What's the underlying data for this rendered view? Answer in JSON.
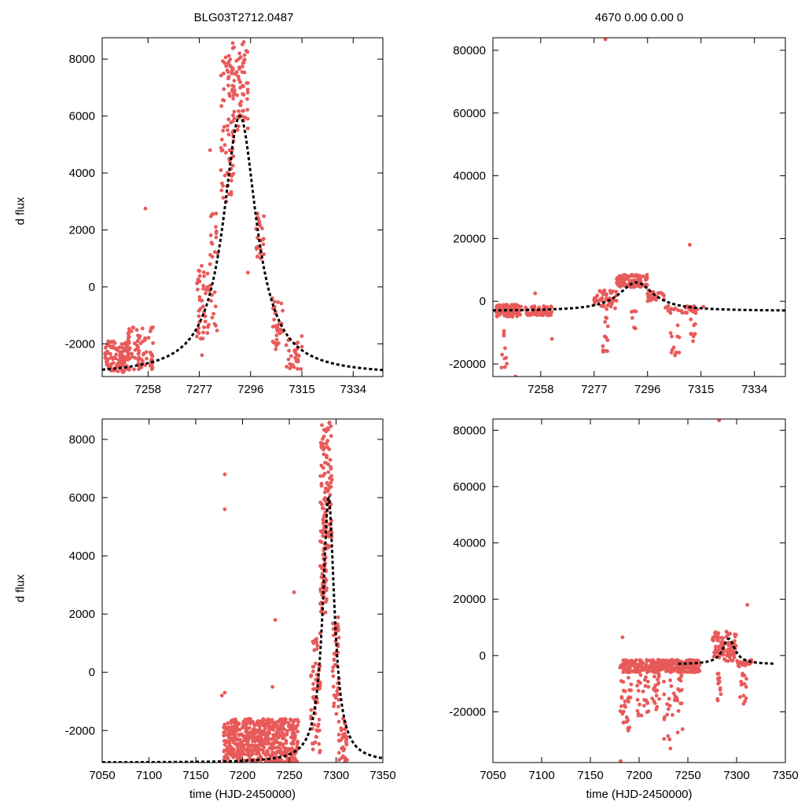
{
  "titles": {
    "left": "BLG03T2712.0487",
    "right": "4670   0.00   0.00   0"
  },
  "ylabel": "d flux",
  "xlabel": "time (HJD-2450000)",
  "colors": {
    "points": "#e85a5a",
    "model": "#000000",
    "axes": "#000000"
  },
  "chart_data": [
    {
      "type": "scatter",
      "panel": "top-left",
      "xlim": [
        7241,
        7345
      ],
      "ylim": [
        -3150,
        8750
      ],
      "xticks": [
        7258,
        7277,
        7296,
        7315,
        7334
      ],
      "yticks": [
        -2000,
        0,
        2000,
        4000,
        6000,
        8000
      ],
      "model": {
        "t0": 7292,
        "amplitude": 9100,
        "baseline": -3100,
        "width": 7.5
      },
      "clusters": [
        {
          "x": [
            7242,
            7251
          ],
          "y": [
            -3000,
            -1900
          ],
          "n": 110
        },
        {
          "x": [
            7250,
            7260
          ],
          "y": [
            -2900,
            -1400
          ],
          "n": 80
        },
        {
          "x": [
            7276,
            7281
          ],
          "y": [
            -2300,
            800
          ],
          "n": 45
        },
        {
          "x": [
            7281,
            7284
          ],
          "y": [
            -2000,
            2600
          ],
          "n": 25
        },
        {
          "x": [
            7285,
            7290
          ],
          "y": [
            3000,
            8300
          ],
          "n": 70
        },
        {
          "x": [
            7289,
            7295
          ],
          "y": [
            5500,
            8600
          ],
          "n": 70
        },
        {
          "x": [
            7298,
            7301
          ],
          "y": [
            900,
            2600
          ],
          "n": 25
        },
        {
          "x": [
            7304,
            7308
          ],
          "y": [
            -2200,
            -500
          ],
          "n": 30
        },
        {
          "x": [
            7309,
            7315
          ],
          "y": [
            -2900,
            -1700
          ],
          "n": 30
        }
      ],
      "outliers": [
        [
          7257,
          2750
        ],
        [
          7281,
          4800
        ],
        [
          7285,
          4100
        ],
        [
          7295,
          500
        ],
        [
          7304,
          -400
        ],
        [
          7278,
          -2400
        ]
      ]
    },
    {
      "type": "scatter",
      "panel": "top-right",
      "xlim": [
        7241,
        7345
      ],
      "ylim": [
        -24000,
        84000
      ],
      "xticks": [
        7258,
        7277,
        7296,
        7315,
        7334
      ],
      "yticks": [
        -20000,
        0,
        20000,
        40000,
        60000,
        80000
      ],
      "model": {
        "t0": 7292,
        "amplitude": 9100,
        "baseline": -3100,
        "width": 7.5
      },
      "clusters": [
        {
          "x": [
            7242,
            7250
          ],
          "y": [
            -5000,
            -1000
          ],
          "n": 110
        },
        {
          "x": [
            7250,
            7262
          ],
          "y": [
            -4500,
            -1500
          ],
          "n": 70
        },
        {
          "x": [
            7277,
            7285
          ],
          "y": [
            -2500,
            3500
          ],
          "n": 50
        },
        {
          "x": [
            7285,
            7296
          ],
          "y": [
            4500,
            8500
          ],
          "n": 110
        },
        {
          "x": [
            7296,
            7302
          ],
          "y": [
            0,
            4000
          ],
          "n": 25
        },
        {
          "x": [
            7302,
            7316
          ],
          "y": [
            -4000,
            -1500
          ],
          "n": 40
        },
        {
          "x": [
            7244,
            7246
          ],
          "y": [
            -22000,
            -8000
          ],
          "n": 10
        },
        {
          "x": [
            7280,
            7282
          ],
          "y": [
            -17000,
            -5000
          ],
          "n": 12
        },
        {
          "x": [
            7290,
            7292
          ],
          "y": [
            -9000,
            -3000
          ],
          "n": 6
        },
        {
          "x": [
            7304,
            7308
          ],
          "y": [
            -18000,
            -7000
          ],
          "n": 12
        },
        {
          "x": [
            7311,
            7313
          ],
          "y": [
            -13000,
            -5000
          ],
          "n": 8
        }
      ],
      "outliers": [
        [
          7281,
          83500
        ],
        [
          7311,
          18000
        ],
        [
          7262,
          -12000
        ],
        [
          7256,
          2500
        ],
        [
          7249,
          -24000
        ]
      ]
    },
    {
      "type": "scatter",
      "panel": "bottom-left",
      "xlim": [
        7050,
        7350
      ],
      "ylim": [
        -3100,
        8700
      ],
      "xticks": [
        7050,
        7100,
        7150,
        7200,
        7250,
        7300,
        7350
      ],
      "yticks": [
        -2000,
        0,
        2000,
        4000,
        6000,
        8000
      ],
      "model": {
        "t0": 7292,
        "amplitude": 9100,
        "baseline": -3100,
        "width": 7.5
      },
      "clusters": [
        {
          "x": [
            7180,
            7260
          ],
          "y": [
            -3100,
            -1600
          ],
          "n": 550
        },
        {
          "x": [
            7273,
            7283
          ],
          "y": [
            -2800,
            1500
          ],
          "n": 60
        },
        {
          "x": [
            7283,
            7290
          ],
          "y": [
            2000,
            8500
          ],
          "n": 110
        },
        {
          "x": [
            7290,
            7296
          ],
          "y": [
            4000,
            8600
          ],
          "n": 50
        },
        {
          "x": [
            7296,
            7303
          ],
          "y": [
            -1500,
            2000
          ],
          "n": 40
        },
        {
          "x": [
            7303,
            7312
          ],
          "y": [
            -3100,
            -1500
          ],
          "n": 35
        }
      ],
      "outliers": [
        [
          7181,
          6800
        ],
        [
          7181,
          5600
        ],
        [
          7181,
          -700
        ],
        [
          7178,
          -800
        ],
        [
          7235,
          1800
        ],
        [
          7255,
          2750
        ],
        [
          7232,
          -500
        ]
      ]
    },
    {
      "type": "scatter",
      "panel": "bottom-right",
      "xlim": [
        7050,
        7350
      ],
      "ylim": [
        -38000,
        84000
      ],
      "xticks": [
        7050,
        7100,
        7150,
        7200,
        7250,
        7300,
        7350
      ],
      "yticks": [
        -20000,
        0,
        20000,
        40000,
        60000,
        80000
      ],
      "model": {
        "t0": 7292,
        "amplitude": 9100,
        "baseline": -3100,
        "width": 7.5,
        "x_start": 7240
      },
      "clusters": [
        {
          "x": [
            7180,
            7262
          ],
          "y": [
            -6000,
            -1500
          ],
          "n": 350
        },
        {
          "x": [
            7180,
            7192
          ],
          "y": [
            -28000,
            -6000
          ],
          "n": 30
        },
        {
          "x": [
            7198,
            7210
          ],
          "y": [
            -22000,
            -6000
          ],
          "n": 25
        },
        {
          "x": [
            7212,
            7222
          ],
          "y": [
            -20000,
            -6000
          ],
          "n": 20
        },
        {
          "x": [
            7225,
            7245
          ],
          "y": [
            -30000,
            -6000
          ],
          "n": 35
        },
        {
          "x": [
            7275,
            7300
          ],
          "y": [
            -2000,
            8500
          ],
          "n": 90
        },
        {
          "x": [
            7280,
            7284
          ],
          "y": [
            -16000,
            -6000
          ],
          "n": 12
        },
        {
          "x": [
            7303,
            7310
          ],
          "y": [
            -18000,
            -6000
          ],
          "n": 14
        },
        {
          "x": [
            7300,
            7316
          ],
          "y": [
            -4000,
            -1500
          ],
          "n": 25
        }
      ],
      "outliers": [
        [
          7282,
          83500
        ],
        [
          7311,
          18000
        ],
        [
          7183,
          6500
        ],
        [
          7181,
          -37500
        ],
        [
          7232,
          -33000
        ]
      ]
    }
  ]
}
